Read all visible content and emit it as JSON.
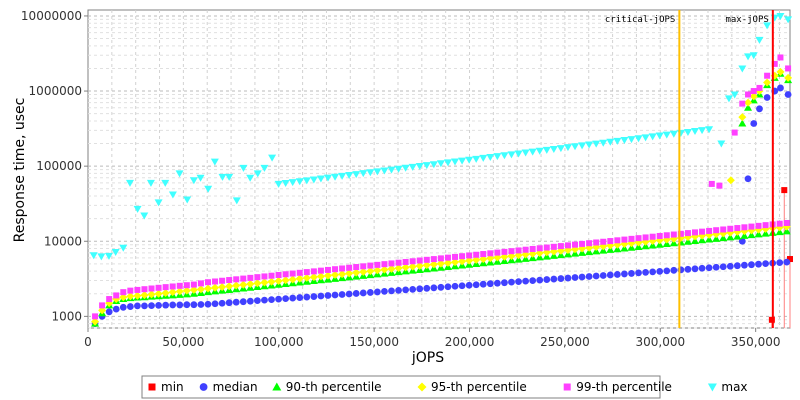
{
  "chart_data": {
    "type": "scatter",
    "xlabel": "jOPS",
    "ylabel": "Response time, usec",
    "xlim": [
      0,
      368000
    ],
    "ylim": [
      700,
      12000000
    ],
    "yscale": "log",
    "grid": true,
    "legend_position": "bottom",
    "x_ticks": [
      {
        "value": 0,
        "label": "0"
      },
      {
        "value": 50000,
        "label": "50,000"
      },
      {
        "value": 100000,
        "label": "100,000"
      },
      {
        "value": 150000,
        "label": "150,000"
      },
      {
        "value": 200000,
        "label": "200,000"
      },
      {
        "value": 250000,
        "label": "250,000"
      },
      {
        "value": 300000,
        "label": "300,000"
      },
      {
        "value": 350000,
        "label": "350,000"
      }
    ],
    "y_ticks": [
      {
        "value": 1000,
        "label": "1000"
      },
      {
        "value": 10000,
        "label": "10000"
      },
      {
        "value": 100000,
        "label": "100000"
      },
      {
        "value": 1000000,
        "label": "1000000"
      },
      {
        "value": 10000000,
        "label": "10000000"
      }
    ],
    "markers": [
      {
        "label": "critical-jOPS",
        "x": 310000,
        "color": "#ffc000"
      },
      {
        "label": "max-jOPS",
        "x": 359000,
        "color": "#ff0000"
      }
    ],
    "x_start": 3700,
    "x_step": 3700,
    "series": [
      {
        "name": "min",
        "color": "#ff0000",
        "shape": "square",
        "x": [
          358500,
          365000,
          368000
        ],
        "values": [
          900,
          48000,
          5800
        ]
      },
      {
        "name": "median",
        "color": "#4040ff",
        "shape": "circle",
        "start": [
          800,
          1000,
          1150,
          1250,
          1320,
          1350,
          1380,
          1380,
          1390,
          1400,
          1410,
          1420,
          1420,
          1430,
          1430,
          1440
        ],
        "from": 1450,
        "to": 5800,
        "step_n": 89,
        "tail_x": [
          343000,
          346000,
          349000,
          352000,
          356000,
          360000,
          363000,
          367000
        ],
        "tail": [
          10000,
          68000,
          370000,
          580000,
          820000,
          1000000,
          1100000,
          900000
        ]
      },
      {
        "name": "90-th percentile",
        "color": "#00ff00",
        "shape": "triangle-up",
        "start": [
          800,
          1100,
          1400,
          1600,
          1700,
          1750,
          1780,
          1800,
          1830,
          1850,
          1880,
          1900,
          1930,
          1960,
          2000,
          2050
        ],
        "from": 2100,
        "to": 15500,
        "step_n": 89,
        "tail_x": [
          343000,
          346000,
          349000,
          352000,
          356000,
          360000,
          363000,
          367000
        ],
        "tail": [
          370000,
          600000,
          750000,
          900000,
          1200000,
          1500000,
          1700000,
          1400000
        ]
      },
      {
        "name": "95-th percentile",
        "color": "#ffff00",
        "shape": "diamond",
        "start": [
          850,
          1200,
          1500,
          1700,
          1800,
          1850,
          1880,
          1920,
          1960,
          2000,
          2050,
          2100,
          2150,
          2200,
          2250,
          2300
        ],
        "from": 2350,
        "to": 18000,
        "step_n": 89,
        "tail_x": [
          337000,
          343000,
          346000,
          349000,
          352000,
          356000,
          360000,
          363000,
          367000
        ],
        "tail": [
          65000,
          450000,
          700000,
          850000,
          1000000,
          1300000,
          1600000,
          1800000,
          1500000
        ]
      },
      {
        "name": "99-th percentile",
        "color": "#ff40ff",
        "shape": "square",
        "start": [
          1000,
          1400,
          1700,
          1900,
          2100,
          2200,
          2250,
          2300,
          2350,
          2400,
          2450,
          2500,
          2550,
          2600,
          2650,
          2750
        ],
        "from": 2850,
        "to": 20000,
        "step_n": 89,
        "tail_x": [
          327000,
          331000,
          339000,
          343000,
          346000,
          349000,
          352000,
          356000,
          360000,
          363000,
          367000
        ],
        "tail": [
          58000,
          55000,
          280000,
          680000,
          900000,
          1000000,
          1100000,
          1600000,
          2300000,
          2800000,
          2000000
        ]
      },
      {
        "name": "max",
        "color": "#40ffff",
        "shape": "triangle-down",
        "points": [
          [
            3000,
            6500
          ],
          [
            7000,
            6300
          ],
          [
            11000,
            6400
          ],
          [
            14500,
            7200
          ],
          [
            18500,
            8200
          ],
          [
            22000,
            60000
          ],
          [
            26000,
            27000
          ],
          [
            29500,
            22000
          ],
          [
            33000,
            60000
          ],
          [
            37000,
            33000
          ],
          [
            40500,
            60000
          ],
          [
            44500,
            42000
          ],
          [
            48000,
            80000
          ],
          [
            52000,
            36000
          ],
          [
            55500,
            65000
          ],
          [
            59000,
            70000
          ],
          [
            63000,
            50000
          ],
          [
            66500,
            115000
          ],
          [
            70500,
            72000
          ],
          [
            74000,
            72000
          ],
          [
            78000,
            35000
          ],
          [
            81500,
            95000
          ],
          [
            85000,
            70000
          ],
          [
            89000,
            80000
          ],
          [
            92500,
            95000
          ],
          [
            96500,
            130000
          ]
        ],
        "from": 58000,
        "to": 310000,
        "step_n": 62,
        "tail_x": [
          332000,
          336000,
          339000,
          343000,
          346000,
          349000,
          352000,
          356000,
          360000,
          363000,
          367000
        ],
        "tail": [
          200000,
          800000,
          900000,
          2000000,
          2900000,
          3000000,
          4800000,
          7500000,
          9500000,
          10000000,
          9000000
        ]
      }
    ]
  },
  "legend": {
    "items": [
      {
        "label": "min",
        "color": "#ff0000",
        "shape": "square"
      },
      {
        "label": "median",
        "color": "#4040ff",
        "shape": "circle"
      },
      {
        "label": "90-th percentile",
        "color": "#00ff00",
        "shape": "triangle-up"
      },
      {
        "label": "95-th percentile",
        "color": "#ffff00",
        "shape": "diamond"
      },
      {
        "label": "99-th percentile",
        "color": "#ff40ff",
        "shape": "square"
      },
      {
        "label": "max",
        "color": "#40ffff",
        "shape": "triangle-down"
      }
    ]
  }
}
